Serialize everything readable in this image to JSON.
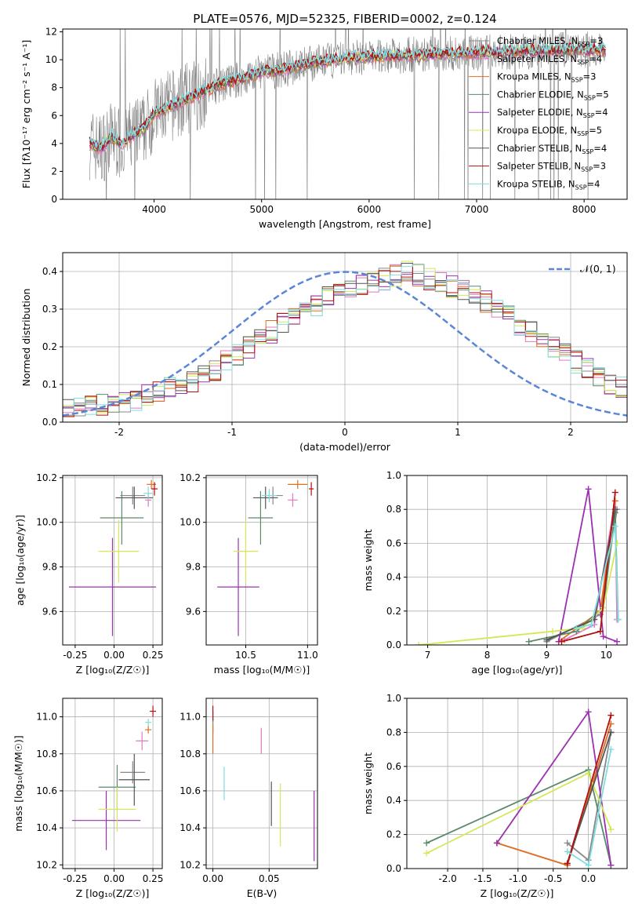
{
  "figure_title": "PLATE=0576, MJD=52325, FIBERID=0002, z=0.124",
  "models": [
    {
      "name": "Chabrier MILES",
      "nssp": "3",
      "color": "#888888"
    },
    {
      "name": "Salpeter MILES",
      "nssp": "4",
      "color": "#e377c2"
    },
    {
      "name": "Kroupa MILES",
      "nssp": "3",
      "color": "#e07020"
    },
    {
      "name": "Chabrier ELODIE",
      "nssp": "5",
      "color": "#5a8a6a"
    },
    {
      "name": "Salpeter ELODIE",
      "nssp": "4",
      "color": "#9b30b0"
    },
    {
      "name": "Kroupa ELODIE",
      "nssp": "5",
      "color": "#d4e857"
    },
    {
      "name": "Chabrier STELIB",
      "nssp": "4",
      "color": "#555555"
    },
    {
      "name": "Salpeter STELIB",
      "nssp": "3",
      "color": "#b01010"
    },
    {
      "name": "Kroupa STELIB",
      "nssp": "4",
      "color": "#80dce0"
    }
  ],
  "chart_data": [
    {
      "type": "line",
      "panel": "spectrum",
      "xlabel": "wavelength [Angstrom, rest frame]",
      "ylabel": "Flux [fλ10⁻¹⁷ erg cm⁻² s⁻¹ A⁻¹]",
      "xlim": [
        3150,
        8400
      ],
      "ylim": [
        0,
        12.2
      ],
      "xticks": [
        4000,
        5000,
        6000,
        7000,
        8000
      ],
      "yticks": [
        0,
        2,
        4,
        6,
        8,
        10,
        12
      ],
      "grid": false,
      "legend": "top-right",
      "continuum_x": [
        3400,
        3500,
        3600,
        3700,
        3800,
        3900,
        4000,
        4100,
        4200,
        4400,
        4600,
        4800,
        5000,
        5200,
        5500,
        5800,
        6000,
        6300,
        6600,
        7000,
        7400,
        7800,
        8200
      ],
      "continuum_y": [
        4.0,
        3.6,
        4.5,
        3.9,
        4.6,
        5.0,
        6.1,
        6.5,
        6.8,
        7.5,
        8.2,
        8.6,
        9.1,
        9.3,
        9.8,
        10.1,
        10.2,
        10.3,
        10.4,
        10.5,
        10.6,
        10.7,
        10.7
      ]
    },
    {
      "type": "histogram",
      "panel": "residuals",
      "xlabel": "(data-model)/error",
      "ylabel": "Normed distribution",
      "xlim": [
        -2.5,
        2.5
      ],
      "ylim": [
        0,
        0.45
      ],
      "xticks": [
        -2,
        -1,
        0,
        1,
        2
      ],
      "yticks": [
        0.0,
        0.1,
        0.2,
        0.3,
        0.4
      ],
      "grid": true,
      "legend": "top-right",
      "reference_label": "𝒩(0, 1)",
      "bin_width": 0.1,
      "bin_start": -2.5,
      "base_density": [
        0.04,
        0.035,
        0.04,
        0.045,
        0.05,
        0.055,
        0.06,
        0.07,
        0.08,
        0.09,
        0.1,
        0.11,
        0.12,
        0.14,
        0.16,
        0.18,
        0.2,
        0.22,
        0.24,
        0.26,
        0.28,
        0.3,
        0.31,
        0.33,
        0.34,
        0.35,
        0.36,
        0.37,
        0.38,
        0.39,
        0.4,
        0.39,
        0.38,
        0.37,
        0.36,
        0.35,
        0.34,
        0.32,
        0.3,
        0.28,
        0.26,
        0.24,
        0.22,
        0.2,
        0.18,
        0.16,
        0.14,
        0.12,
        0.1,
        0.09
      ]
    },
    {
      "type": "scatter",
      "panel": "age-vs-Z",
      "xlabel": "Z [log₁₀(Z/Z☉)]",
      "ylabel": "age  [log₁₀(age/yr)]",
      "xlim": [
        -0.33,
        0.31
      ],
      "ylim": [
        9.45,
        10.21
      ],
      "xticks": [
        -0.25,
        0.0,
        0.25
      ],
      "yticks": [
        9.6,
        9.8,
        10.0,
        10.2
      ],
      "grid": true,
      "points": [
        {
          "model": 0,
          "x": 0.12,
          "xerr": 0.08,
          "y": 10.12,
          "yerr": 0.04
        },
        {
          "model": 1,
          "x": 0.22,
          "xerr": 0.02,
          "y": 10.1,
          "yerr": 0.03
        },
        {
          "model": 2,
          "x": 0.24,
          "xerr": 0.03,
          "y": 10.17,
          "yerr": 0.02
        },
        {
          "model": 3,
          "x": 0.05,
          "xerr": 0.14,
          "y": 10.02,
          "yerr": 0.12
        },
        {
          "model": 4,
          "x": -0.01,
          "xerr": 0.28,
          "y": 9.71,
          "yerr": 0.22
        },
        {
          "model": 5,
          "x": 0.03,
          "xerr": 0.13,
          "y": 9.87,
          "yerr": 0.14
        },
        {
          "model": 6,
          "x": 0.13,
          "xerr": 0.12,
          "y": 10.11,
          "yerr": 0.05
        },
        {
          "model": 7,
          "x": 0.26,
          "xerr": 0.02,
          "y": 10.15,
          "yerr": 0.03
        },
        {
          "model": 8,
          "x": 0.22,
          "xerr": 0.03,
          "y": 10.13,
          "yerr": 0.03
        }
      ]
    },
    {
      "type": "scatter",
      "panel": "age-vs-mass",
      "xlabel": "mass [log₁₀(M/M☉)]",
      "ylabel": "",
      "xlim": [
        10.18,
        11.08
      ],
      "ylim": [
        9.45,
        10.21
      ],
      "xticks": [
        10.5,
        11.0
      ],
      "yticks": [
        9.6,
        9.8,
        10.0,
        10.2
      ],
      "grid": true,
      "points": [
        {
          "model": 0,
          "x": 10.72,
          "xerr": 0.08,
          "y": 10.12,
          "yerr": 0.04
        },
        {
          "model": 1,
          "x": 10.88,
          "xerr": 0.04,
          "y": 10.1,
          "yerr": 0.03
        },
        {
          "model": 2,
          "x": 10.92,
          "xerr": 0.08,
          "y": 10.17,
          "yerr": 0.02
        },
        {
          "model": 3,
          "x": 10.62,
          "xerr": 0.1,
          "y": 10.02,
          "yerr": 0.12
        },
        {
          "model": 4,
          "x": 10.44,
          "xerr": 0.17,
          "y": 9.71,
          "yerr": 0.22
        },
        {
          "model": 5,
          "x": 10.5,
          "xerr": 0.1,
          "y": 9.87,
          "yerr": 0.14
        },
        {
          "model": 6,
          "x": 10.66,
          "xerr": 0.1,
          "y": 10.11,
          "yerr": 0.05
        },
        {
          "model": 7,
          "x": 11.03,
          "xerr": 0.02,
          "y": 10.15,
          "yerr": 0.03
        },
        {
          "model": 8,
          "x": 10.69,
          "xerr": 0.06,
          "y": 10.12,
          "yerr": 0.03
        }
      ]
    },
    {
      "type": "line",
      "panel": "mass-weight-vs-age",
      "xlabel": "age  [log₁₀(age/yr)]",
      "ylabel": "mass weight",
      "xlim": [
        6.65,
        10.35
      ],
      "ylim": [
        0,
        1.0
      ],
      "xticks": [
        7,
        8,
        9,
        10
      ],
      "yticks": [
        0.0,
        0.2,
        0.4,
        0.6,
        0.8,
        1.0
      ],
      "grid": true,
      "series": [
        {
          "model": 0,
          "x": [
            9.0,
            9.9,
            10.18
          ],
          "y": [
            0.02,
            0.18,
            0.8
          ]
        },
        {
          "model": 1,
          "x": [
            9.3,
            9.8,
            10.15,
            10.18
          ],
          "y": [
            0.03,
            0.12,
            0.85,
            0.15
          ]
        },
        {
          "model": 2,
          "x": [
            9.2,
            9.9,
            10.15
          ],
          "y": [
            0.02,
            0.2,
            0.85
          ]
        },
        {
          "model": 3,
          "x": [
            8.7,
            9.5,
            9.95,
            10.15,
            10.2
          ],
          "y": [
            0.02,
            0.08,
            0.22,
            0.78,
            0.15
          ]
        },
        {
          "model": 4,
          "x": [
            9.2,
            9.7,
            9.95,
            10.18
          ],
          "y": [
            0.02,
            0.92,
            0.05,
            0.02
          ]
        },
        {
          "model": 5,
          "x": [
            6.85,
            9.1,
            9.6,
            9.95,
            10.18
          ],
          "y": [
            0.0,
            0.08,
            0.1,
            0.22,
            0.6
          ]
        },
        {
          "model": 6,
          "x": [
            9.0,
            9.8,
            10.15
          ],
          "y": [
            0.03,
            0.15,
            0.8
          ]
        },
        {
          "model": 7,
          "x": [
            9.25,
            9.9,
            10.15
          ],
          "y": [
            0.02,
            0.08,
            0.9
          ]
        },
        {
          "model": 8,
          "x": [
            9.5,
            9.75,
            10.15,
            10.2
          ],
          "y": [
            0.1,
            0.12,
            0.7,
            0.15
          ]
        }
      ]
    },
    {
      "type": "scatter",
      "panel": "mass-vs-Z",
      "xlabel": "Z [log₁₀(Z/Z☉)]",
      "ylabel": "mass [log₁₀(M/M☉)]",
      "xlim": [
        -0.33,
        0.31
      ],
      "ylim": [
        10.18,
        11.1
      ],
      "xticks": [
        -0.25,
        0.0,
        0.25
      ],
      "yticks": [
        10.2,
        10.4,
        10.6,
        10.8,
        11.0
      ],
      "grid": true,
      "points": [
        {
          "model": 0,
          "x": 0.12,
          "xerr": 0.08,
          "y": 10.7,
          "yerr": 0.06
        },
        {
          "model": 1,
          "x": 0.18,
          "xerr": 0.04,
          "y": 10.87,
          "yerr": 0.05
        },
        {
          "model": 2,
          "x": 0.22,
          "xerr": 0.02,
          "y": 10.93,
          "yerr": 0.02
        },
        {
          "model": 3,
          "x": 0.02,
          "xerr": 0.12,
          "y": 10.62,
          "yerr": 0.12
        },
        {
          "model": 4,
          "x": -0.05,
          "xerr": 0.22,
          "y": 10.44,
          "yerr": 0.16
        },
        {
          "model": 5,
          "x": 0.02,
          "xerr": 0.12,
          "y": 10.5,
          "yerr": 0.12
        },
        {
          "model": 6,
          "x": 0.13,
          "xerr": 0.1,
          "y": 10.66,
          "yerr": 0.14
        },
        {
          "model": 7,
          "x": 0.25,
          "xerr": 0.02,
          "y": 11.03,
          "yerr": 0.03
        },
        {
          "model": 8,
          "x": 0.22,
          "xerr": 0.02,
          "y": 10.97,
          "yerr": 0.02
        }
      ]
    },
    {
      "type": "scatter",
      "panel": "mass-vs-EBV",
      "xlabel": "E(B-V)",
      "ylabel": "",
      "xlim": [
        -0.006,
        0.093
      ],
      "ylim": [
        10.18,
        11.1
      ],
      "xticks": [
        0.0,
        0.05
      ],
      "yticks": [
        10.2,
        10.4,
        10.6,
        10.8,
        11.0
      ],
      "grid": true,
      "points": [
        {
          "model": 0,
          "x": 0.0,
          "xerr": 0.0,
          "y": 10.95,
          "yerr": 0.04
        },
        {
          "model": 1,
          "x": 0.043,
          "xerr": 0.0,
          "y": 10.87,
          "yerr": 0.07
        },
        {
          "model": 2,
          "x": 0.0,
          "xerr": 0.0,
          "y": 10.88,
          "yerr": 0.08
        },
        {
          "model": 3,
          "x": 0.0,
          "xerr": 0.0,
          "y": 11.0,
          "yerr": 0.03
        },
        {
          "model": 4,
          "x": 0.09,
          "xerr": 0.0,
          "y": 10.41,
          "yerr": 0.19
        },
        {
          "model": 5,
          "x": 0.06,
          "xerr": 0.0,
          "y": 10.47,
          "yerr": 0.17
        },
        {
          "model": 6,
          "x": 0.052,
          "xerr": 0.0,
          "y": 10.53,
          "yerr": 0.12
        },
        {
          "model": 7,
          "x": 0.0,
          "xerr": 0.0,
          "y": 11.02,
          "yerr": 0.04
        },
        {
          "model": 8,
          "x": 0.01,
          "xerr": 0.0,
          "y": 10.64,
          "yerr": 0.09
        }
      ]
    },
    {
      "type": "line",
      "panel": "mass-weight-vs-Z",
      "xlabel": "Z [log₁₀(Z/Z☉)]",
      "ylabel": "mass weight",
      "xlim": [
        -2.58,
        0.55
      ],
      "ylim": [
        0,
        1.0
      ],
      "xticks": [
        -2.0,
        -1.5,
        -1.0,
        -0.5,
        0.0
      ],
      "yticks": [
        0.0,
        0.2,
        0.4,
        0.6,
        0.8,
        1.0
      ],
      "grid": true,
      "series": [
        {
          "model": 0,
          "x": [
            -0.3,
            0.0,
            0.32
          ],
          "y": [
            0.15,
            0.05,
            0.8
          ]
        },
        {
          "model": 1,
          "x": [
            -1.3,
            -0.3,
            0.32
          ],
          "y": [
            0.15,
            0.02,
            0.85
          ]
        },
        {
          "model": 2,
          "x": [
            -1.3,
            -0.3,
            0.32
          ],
          "y": [
            0.15,
            0.02,
            0.85
          ]
        },
        {
          "model": 3,
          "x": [
            -2.3,
            0.0,
            0.32
          ],
          "y": [
            0.15,
            0.58,
            0.02
          ]
        },
        {
          "model": 4,
          "x": [
            -1.3,
            0.0,
            0.32
          ],
          "y": [
            0.15,
            0.92,
            0.02
          ]
        },
        {
          "model": 5,
          "x": [
            -2.3,
            0.0,
            0.32
          ],
          "y": [
            0.09,
            0.56,
            0.23
          ]
        },
        {
          "model": 6,
          "x": [
            -0.3,
            0.32,
            0.32
          ],
          "y": [
            0.03,
            0.8,
            0.8
          ]
        },
        {
          "model": 7,
          "x": [
            -0.3,
            0.32
          ],
          "y": [
            0.03,
            0.9
          ]
        },
        {
          "model": 8,
          "x": [
            -0.3,
            0.0,
            0.32
          ],
          "y": [
            0.1,
            0.02,
            0.7
          ]
        }
      ]
    }
  ]
}
